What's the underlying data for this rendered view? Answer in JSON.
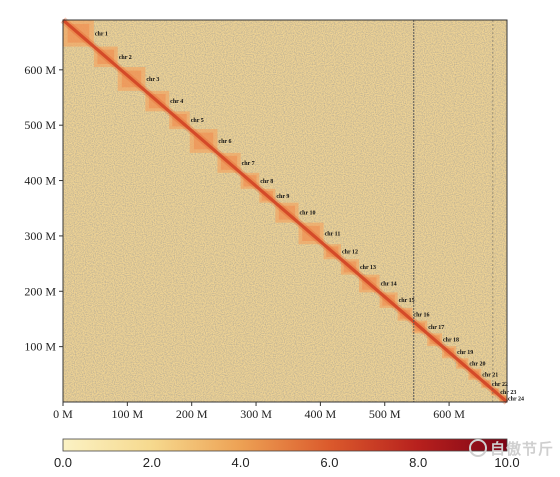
{
  "chart_data": {
    "type": "heatmap",
    "title": "",
    "xlabel": "",
    "ylabel": "",
    "x_range": [
      0,
      690
    ],
    "y_range": [
      0,
      690
    ],
    "x_ticks": [
      {
        "value": 0,
        "label": "0 M"
      },
      {
        "value": 100,
        "label": "100 M"
      },
      {
        "value": 200,
        "label": "200 M"
      },
      {
        "value": 300,
        "label": "300 M"
      },
      {
        "value": 400,
        "label": "400 M"
      },
      {
        "value": 500,
        "label": "500 M"
      },
      {
        "value": 600,
        "label": "600 M"
      }
    ],
    "y_ticks": [
      {
        "value": 100,
        "label": "100 M"
      },
      {
        "value": 200,
        "label": "200 M"
      },
      {
        "value": 300,
        "label": "300 M"
      },
      {
        "value": 400,
        "label": "400 M"
      },
      {
        "value": 500,
        "label": "500 M"
      },
      {
        "value": 600,
        "label": "600 M"
      }
    ],
    "chromosomes": [
      {
        "label": "chr 1",
        "start": 0,
        "end": 48
      },
      {
        "label": "chr 2",
        "start": 48,
        "end": 85
      },
      {
        "label": "chr 3",
        "start": 85,
        "end": 128
      },
      {
        "label": "chr 4",
        "start": 128,
        "end": 165
      },
      {
        "label": "chr 5",
        "start": 165,
        "end": 197
      },
      {
        "label": "chr 6",
        "start": 197,
        "end": 240
      },
      {
        "label": "chr 7",
        "start": 240,
        "end": 276
      },
      {
        "label": "chr 8",
        "start": 276,
        "end": 305
      },
      {
        "label": "chr 9",
        "start": 305,
        "end": 330
      },
      {
        "label": "chr 10",
        "start": 330,
        "end": 366
      },
      {
        "label": "chr 11",
        "start": 366,
        "end": 405
      },
      {
        "label": "chr 12",
        "start": 405,
        "end": 432
      },
      {
        "label": "chr 13",
        "start": 432,
        "end": 460
      },
      {
        "label": "chr 14",
        "start": 460,
        "end": 492
      },
      {
        "label": "chr 15",
        "start": 492,
        "end": 520
      },
      {
        "label": "chr 16",
        "start": 520,
        "end": 543
      },
      {
        "label": "chr 17",
        "start": 543,
        "end": 566
      },
      {
        "label": "chr 18",
        "start": 566,
        "end": 589
      },
      {
        "label": "chr 19",
        "start": 589,
        "end": 611
      },
      {
        "label": "chr 20",
        "start": 611,
        "end": 630
      },
      {
        "label": "chr 21",
        "start": 630,
        "end": 650
      },
      {
        "label": "chr 22",
        "start": 650,
        "end": 665
      },
      {
        "label": "chr 23",
        "start": 665,
        "end": 678
      },
      {
        "label": "chr 24",
        "start": 678,
        "end": 690
      }
    ],
    "colorbar": {
      "min": 0,
      "max": 10,
      "ticks": [
        "0.0",
        "2.0",
        "4.0",
        "6.0",
        "8.0",
        "10.0"
      ],
      "colors": [
        "#fbf2c4",
        "#f6d98e",
        "#eda154",
        "#db5a2c",
        "#b7201d",
        "#7d0416"
      ]
    },
    "background_color": "#efd394",
    "grid": false,
    "legend": "bottom"
  },
  "watermark": {
    "text": "自傲节斤"
  }
}
